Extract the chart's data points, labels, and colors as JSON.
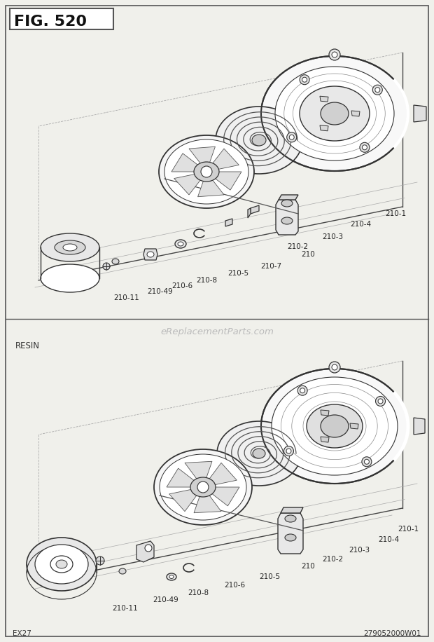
{
  "title": "FIG. 520",
  "bottom_left": "EX27",
  "bottom_right": "279052000W01",
  "watermark": "eReplacementParts.com",
  "resin_label": "RESIN",
  "bg_color": "#f0f0eb",
  "panel_bg": "#ffffff",
  "border_color": "#555555",
  "line_color": "#333333",
  "label_color": "#333333"
}
